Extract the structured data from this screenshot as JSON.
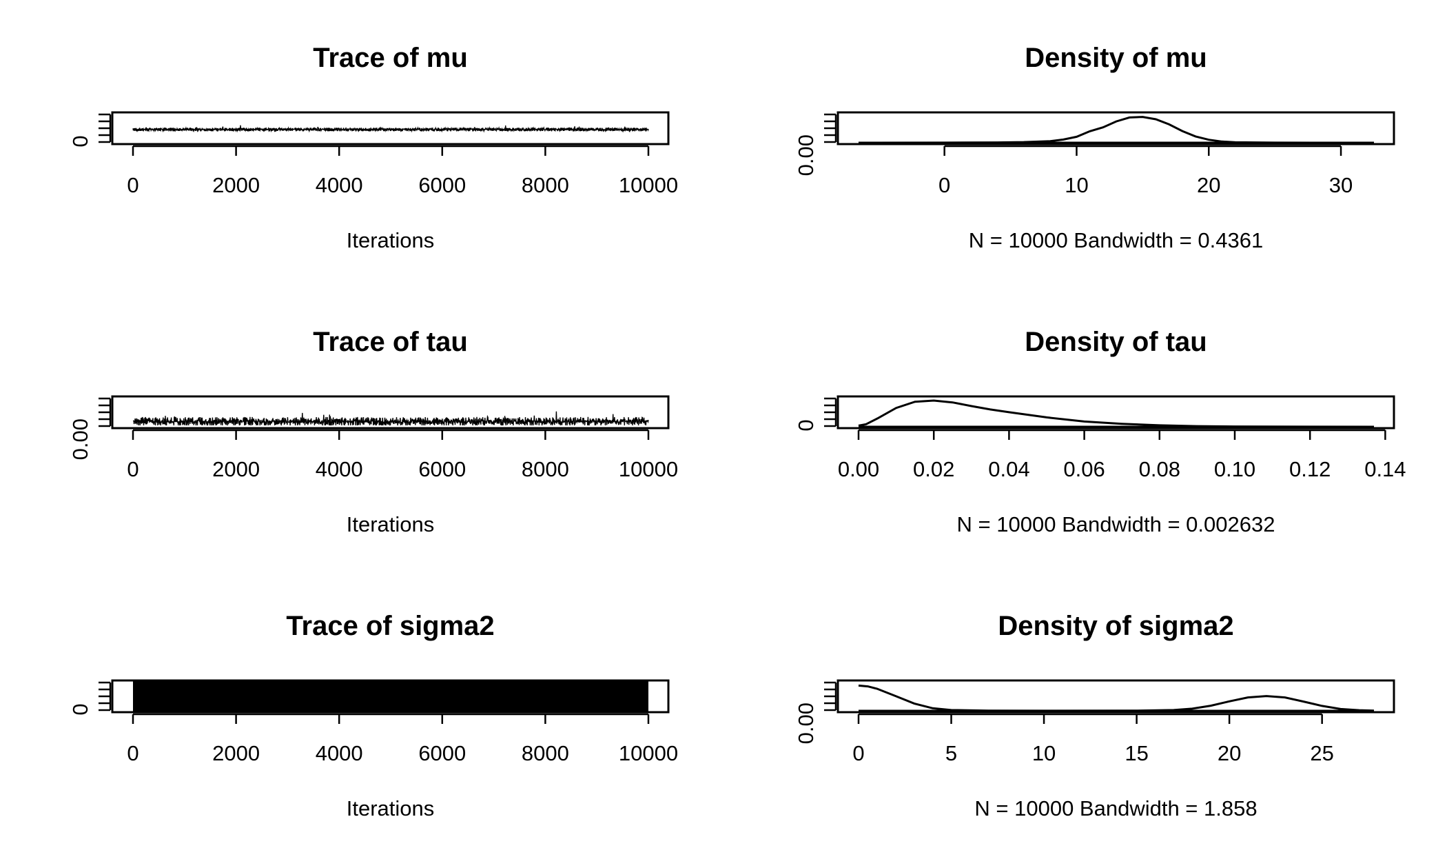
{
  "chart_data": [
    {
      "type": "line",
      "title": "Trace of mu",
      "xlabel": "Iterations",
      "xticks": [
        0,
        2000,
        4000,
        6000,
        8000,
        10000
      ],
      "xticklabels": [
        "0",
        "2000",
        "4000",
        "6000",
        "8000",
        "10000"
      ],
      "xlim": [
        0,
        10000
      ],
      "ylim": [
        0,
        30
      ],
      "yticklabels_visible": [
        "0"
      ],
      "trace": {
        "mean": 14.5,
        "spread": 2.6,
        "n_iter": 10000
      }
    },
    {
      "type": "line",
      "title": "Density of mu",
      "xlabel": "N = 10000   Bandwidth = 0.4361",
      "xticks": [
        0,
        10,
        20,
        30
      ],
      "xticklabels": [
        "0",
        "10",
        "20",
        "30"
      ],
      "xlim": [
        -6.5,
        32.5
      ],
      "ylim": [
        0,
        0.14
      ],
      "yticklabels_visible": [
        "0.00"
      ],
      "x": [
        -6.5,
        0,
        4,
        6,
        8,
        9,
        10,
        11,
        12,
        13,
        14,
        15,
        16,
        17,
        18,
        19,
        20,
        21,
        22,
        25,
        32.5
      ],
      "y": [
        0,
        0.0002,
        0.0015,
        0.003,
        0.008,
        0.016,
        0.03,
        0.058,
        0.078,
        0.108,
        0.128,
        0.131,
        0.119,
        0.093,
        0.059,
        0.032,
        0.015,
        0.006,
        0.002,
        0.0003,
        0
      ]
    },
    {
      "type": "line",
      "title": "Trace of tau",
      "xlabel": "Iterations",
      "xticks": [
        0,
        2000,
        4000,
        6000,
        8000,
        10000
      ],
      "xticklabels": [
        "0",
        "2000",
        "4000",
        "6000",
        "8000",
        "10000"
      ],
      "xlim": [
        0,
        10000
      ],
      "ylim": [
        0,
        0.14
      ],
      "yticklabels_visible": [
        "0.00"
      ],
      "trace": {
        "mean": 0.028,
        "spread": 0.03,
        "n_iter": 10000
      }
    },
    {
      "type": "line",
      "title": "Density of tau",
      "xlabel": "N = 10000   Bandwidth = 0.002632",
      "xticks": [
        0,
        0.02,
        0.04,
        0.06,
        0.08,
        0.1,
        0.12,
        0.14
      ],
      "xticklabels": [
        "0.00",
        "0.02",
        "0.04",
        "0.06",
        "0.08",
        "0.10",
        "0.12",
        "0.14"
      ],
      "xlim": [
        0,
        0.137
      ],
      "ylim": [
        0,
        30
      ],
      "yticklabels_visible": [
        "0"
      ],
      "x": [
        0,
        0.002,
        0.005,
        0.01,
        0.015,
        0.02,
        0.025,
        0.03,
        0.035,
        0.04,
        0.05,
        0.06,
        0.07,
        0.08,
        0.09,
        0.1,
        0.12,
        0.137
      ],
      "y": [
        1.2,
        2.8,
        9,
        20.5,
        27.2,
        28.5,
        26.5,
        22.5,
        18.8,
        15.8,
        10.2,
        5.7,
        3.2,
        1.6,
        0.7,
        0.3,
        0.05,
        0
      ]
    },
    {
      "type": "line",
      "title": "Trace of sigma2",
      "xlabel": "Iterations",
      "xticks": [
        0,
        2000,
        4000,
        6000,
        8000,
        10000
      ],
      "xticklabels": [
        "0",
        "2000",
        "4000",
        "6000",
        "8000",
        "10000"
      ],
      "xlim": [
        0,
        10000
      ],
      "ylim": [
        0,
        30
      ],
      "yticklabels_visible": [
        "0"
      ],
      "trace": {
        "mean": 11,
        "spread": 11,
        "n_iter": 10000,
        "dense": true
      }
    },
    {
      "type": "line",
      "title": "Density of sigma2",
      "xlabel": "N = 10000   Bandwidth = 1.858",
      "xticks": [
        0,
        5,
        10,
        15,
        20,
        25
      ],
      "xticklabels": [
        "0",
        "5",
        "10",
        "15",
        "20",
        "25"
      ],
      "xlim": [
        0,
        27.8
      ],
      "ylim": [
        0,
        0.14
      ],
      "yticklabels_visible": [
        "0.00"
      ],
      "x": [
        0,
        0.5,
        1,
        2,
        3,
        4,
        5,
        7,
        10,
        15,
        17,
        18,
        19,
        20,
        21,
        22,
        23,
        24,
        25,
        26,
        27,
        27.8
      ],
      "y": [
        0.128,
        0.124,
        0.112,
        0.075,
        0.037,
        0.013,
        0.004,
        0.001,
        0.0005,
        0.0008,
        0.004,
        0.011,
        0.026,
        0.048,
        0.068,
        0.075,
        0.068,
        0.047,
        0.025,
        0.009,
        0.003,
        0.001
      ]
    }
  ]
}
